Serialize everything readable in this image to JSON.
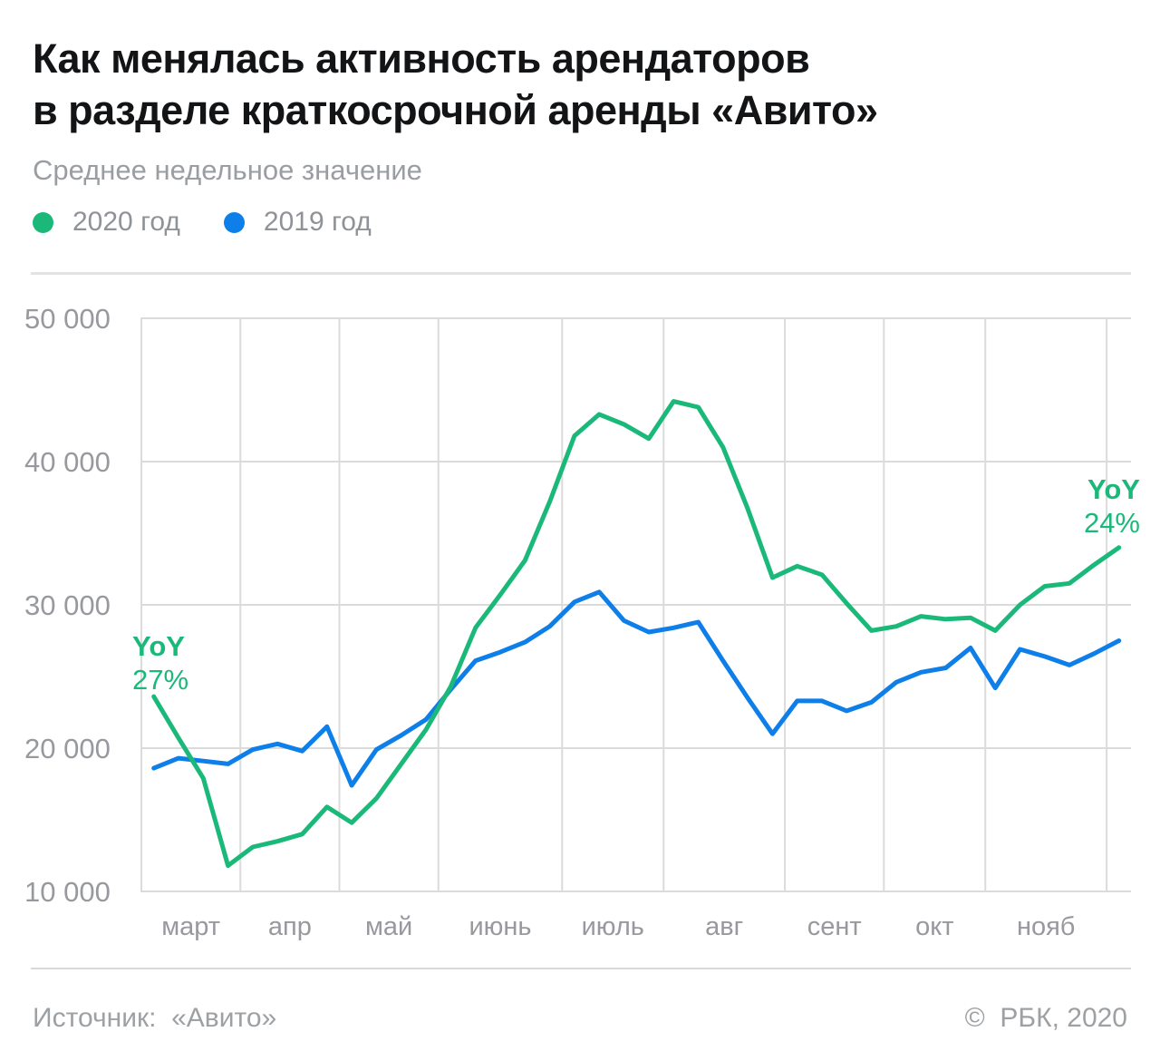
{
  "header": {
    "title_lines": [
      "Как менялась активность арендаторов",
      "в разделе краткосрочной аренды «Авито»"
    ],
    "subtitle": "Среднее недельное значение"
  },
  "legend": [
    {
      "label": "2020 год",
      "color": "#1bb979"
    },
    {
      "label": "2019 год",
      "color": "#0e7ee8"
    }
  ],
  "chart_data": {
    "type": "line",
    "title": "Как менялась активность арендаторов в разделе краткосрочной аренды «Авито»",
    "subtitle": "Среднее недельное значение",
    "x_unit": "weeks (March — November)",
    "xlabel": "",
    "ylabel": "",
    "ylim": [
      10000,
      50000
    ],
    "grid": true,
    "legend_position": "top-left",
    "y_ticks": [
      {
        "value": 10000,
        "label": "10 000"
      },
      {
        "value": 20000,
        "label": "20 000"
      },
      {
        "value": 30000,
        "label": "30 000"
      },
      {
        "value": 40000,
        "label": "40 000"
      },
      {
        "value": 50000,
        "label": "50 000"
      }
    ],
    "month_labels": [
      "март",
      "апр",
      "май",
      "июнь",
      "июль",
      "авг",
      "сент",
      "окт",
      "нояб"
    ],
    "month_boundaries_weeks": [
      -0.5,
      3.5,
      7.5,
      11.5,
      16.5,
      20.6,
      25.5,
      29.5,
      33.6,
      38.5
    ],
    "series": [
      {
        "name": "2020 год",
        "color": "#1bb979",
        "values": [
          23600,
          20700,
          17900,
          11800,
          13100,
          13500,
          14000,
          15900,
          14800,
          16500,
          18900,
          21300,
          24300,
          28400,
          30700,
          33100,
          37200,
          41800,
          43300,
          42600,
          41600,
          44200,
          43800,
          41000,
          36700,
          31900,
          32700,
          32100,
          30100,
          28200,
          28500,
          29200,
          29000,
          29100,
          28200,
          30000,
          31300,
          31500,
          32800,
          34000
        ]
      },
      {
        "name": "2019 год",
        "color": "#0e7ee8",
        "values": [
          18600,
          19300,
          19100,
          18900,
          19900,
          20300,
          19800,
          21500,
          17400,
          19900,
          20900,
          22000,
          24100,
          26100,
          26700,
          27400,
          28500,
          30200,
          30900,
          28900,
          28100,
          28400,
          28800,
          26100,
          23500,
          21000,
          23300,
          23300,
          22600,
          23200,
          24600,
          25300,
          25600,
          27000,
          24200,
          26900,
          26400,
          25800,
          26600,
          27500
        ]
      }
    ],
    "annotations": [
      {
        "lines": [
          "YoY",
          "27%"
        ],
        "color": "#1bb979",
        "position": "start-of-2020-line"
      },
      {
        "lines": [
          "YoY",
          "24%"
        ],
        "color": "#1bb979",
        "position": "end-of-2020-line"
      }
    ]
  },
  "footer": {
    "source": "Источник:  «Авито»",
    "copyright": "©  РБК, 2020"
  }
}
